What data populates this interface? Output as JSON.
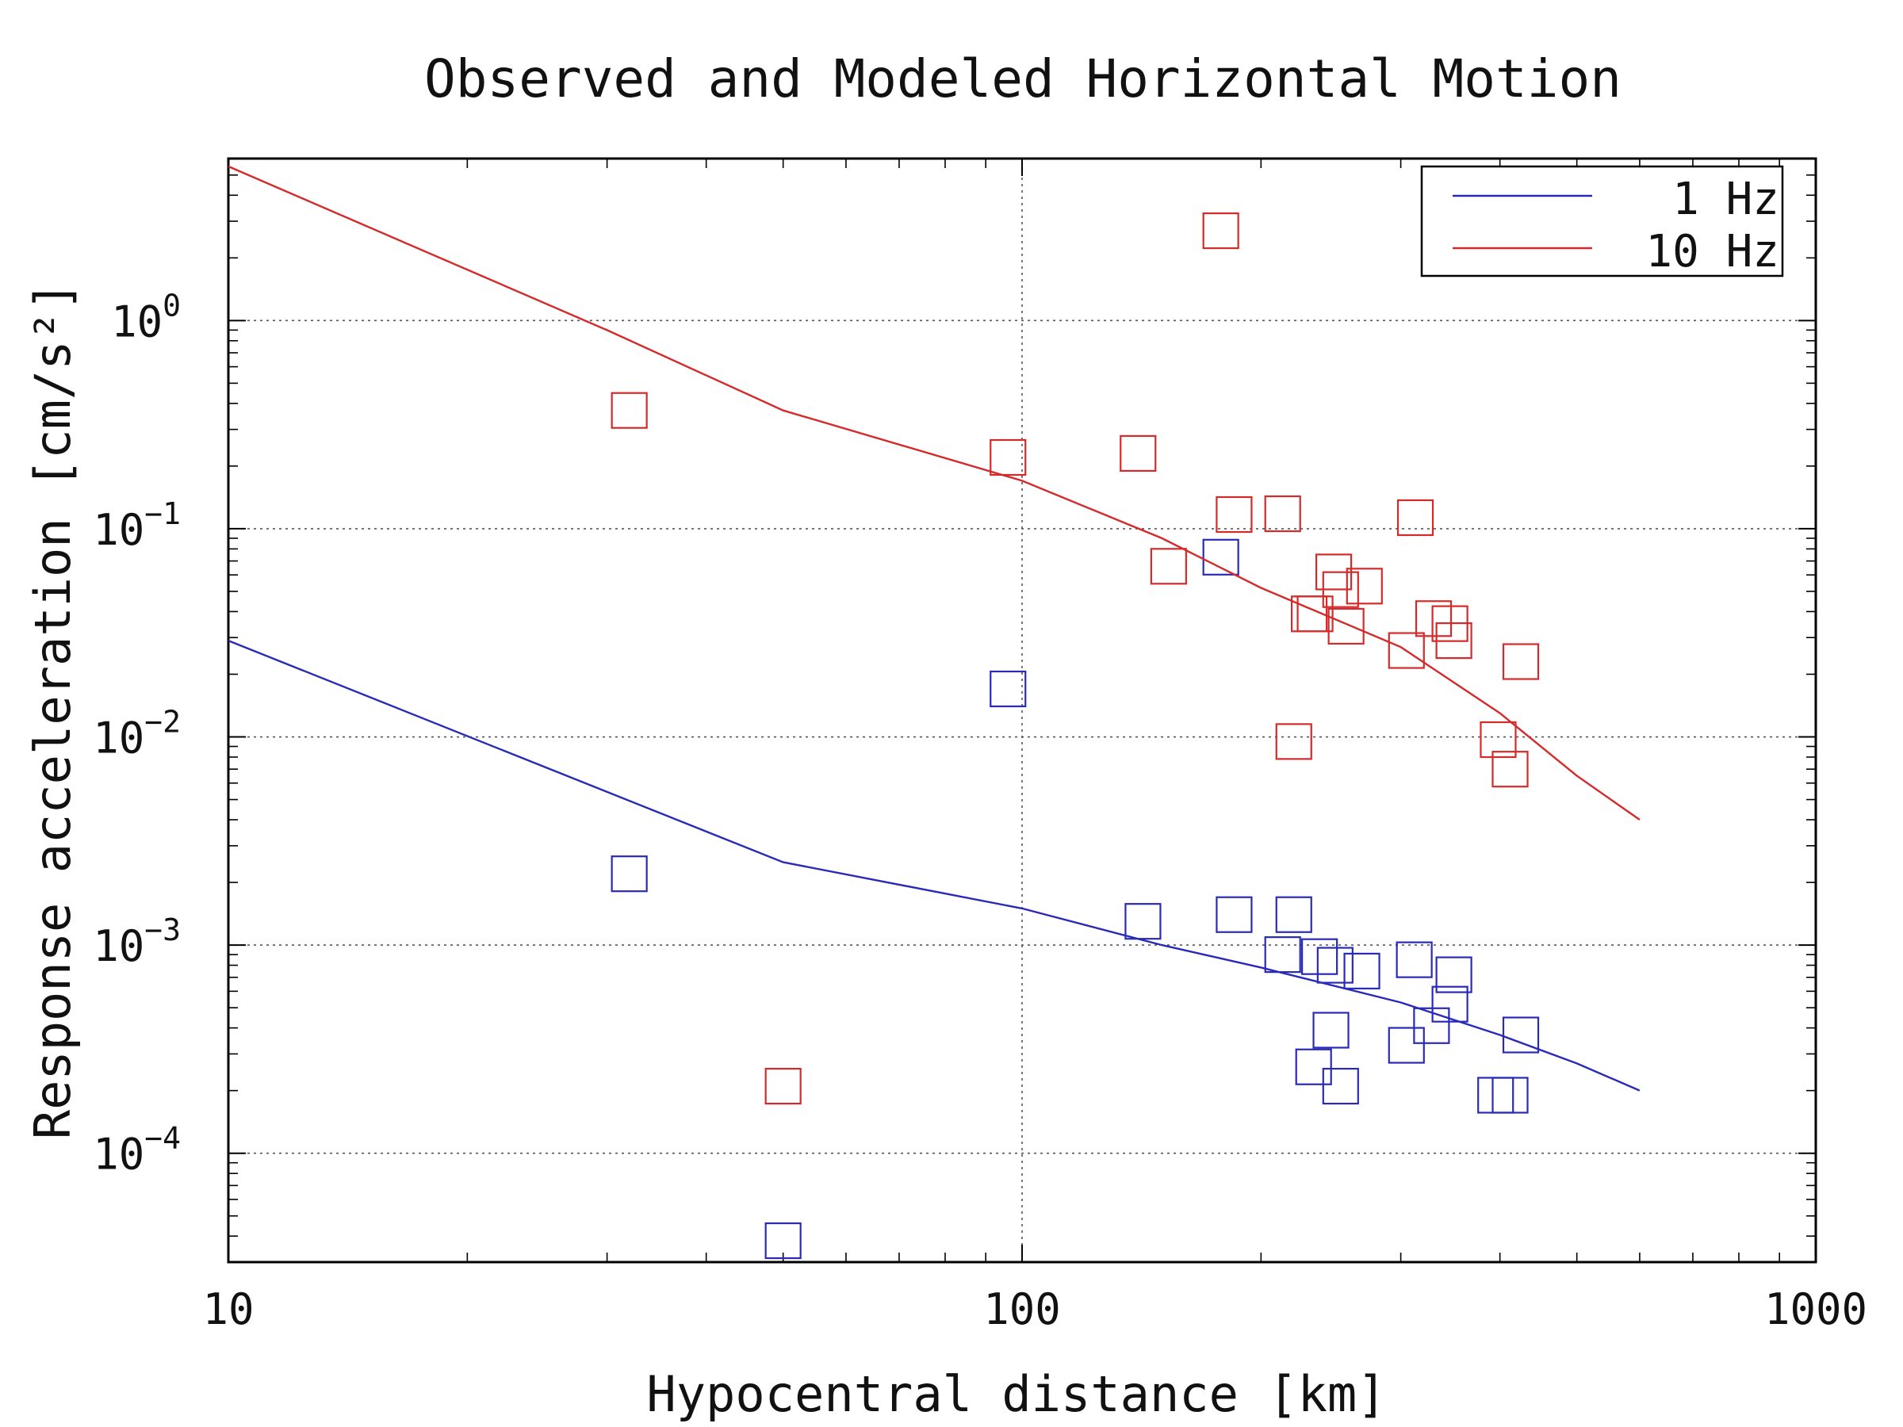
{
  "chart_data": {
    "type": "scatter",
    "title": "Observed and Modeled Horizontal Motion",
    "xlabel": "Hypocentral distance [km]",
    "ylabel": "Response acceleration [cm/s²]",
    "x_scale": "log",
    "y_scale": "log",
    "xlim": [
      10,
      1000
    ],
    "ylim": [
      3e-05,
      6
    ],
    "x_ticks": [
      {
        "value": 10,
        "label": "10"
      },
      {
        "value": 100,
        "label": "100"
      },
      {
        "value": 1000,
        "label": "1000"
      }
    ],
    "y_ticks": [
      {
        "value": 0.0001,
        "base": "10",
        "exp": "−4"
      },
      {
        "value": 0.001,
        "base": "10",
        "exp": "−3"
      },
      {
        "value": 0.01,
        "base": "10",
        "exp": "−2"
      },
      {
        "value": 0.1,
        "base": "10",
        "exp": "−1"
      },
      {
        "value": 1,
        "base": "10",
        "exp": "0"
      }
    ],
    "grid": true,
    "legend_position": "top-right",
    "series": [
      {
        "name": "1 Hz",
        "color": "#2a2ab8",
        "model": {
          "x": [
            10,
            50,
            100,
            150,
            200,
            300,
            400,
            500,
            600
          ],
          "y": [
            0.029,
            0.0025,
            0.0015,
            0.001,
            0.00078,
            0.00053,
            0.00037,
            0.00027,
            0.0002
          ]
        },
        "observed": {
          "x": [
            32,
            50,
            96,
            142,
            178,
            185,
            213,
            220,
            233,
            237,
            248,
            252,
            245,
            268,
            305,
            312,
            328,
            346,
            350,
            395,
            412,
            425
          ],
          "y": [
            0.0022,
            3.8e-05,
            0.017,
            0.0013,
            0.073,
            0.0014,
            0.0009,
            0.0014,
            0.00026,
            0.00088,
            0.0008,
            0.00021,
            0.00039,
            0.00075,
            0.00033,
            0.00085,
            0.00041,
            0.00052,
            0.00072,
            0.00019,
            0.00019,
            0.00037
          ]
        }
      },
      {
        "name": "10 Hz",
        "color": "#d42a2a",
        "model": {
          "x": [
            10,
            30,
            50,
            100,
            150,
            200,
            300,
            400,
            500,
            600
          ],
          "y": [
            5.5,
            0.9,
            0.37,
            0.17,
            0.09,
            0.052,
            0.027,
            0.013,
            0.0065,
            0.004
          ]
        },
        "observed": {
          "x": [
            32,
            50,
            96,
            140,
            153,
            178,
            185,
            213,
            220,
            230,
            234,
            247,
            252,
            256,
            270,
            305,
            313,
            330,
            346,
            350,
            398,
            412,
            425
          ],
          "y": [
            0.37,
            0.00021,
            0.22,
            0.23,
            0.066,
            2.7,
            0.117,
            0.118,
            0.0095,
            0.039,
            0.039,
            0.062,
            0.051,
            0.034,
            0.053,
            0.026,
            0.113,
            0.037,
            0.035,
            0.029,
            0.0097,
            0.007,
            0.023
          ]
        }
      }
    ]
  }
}
